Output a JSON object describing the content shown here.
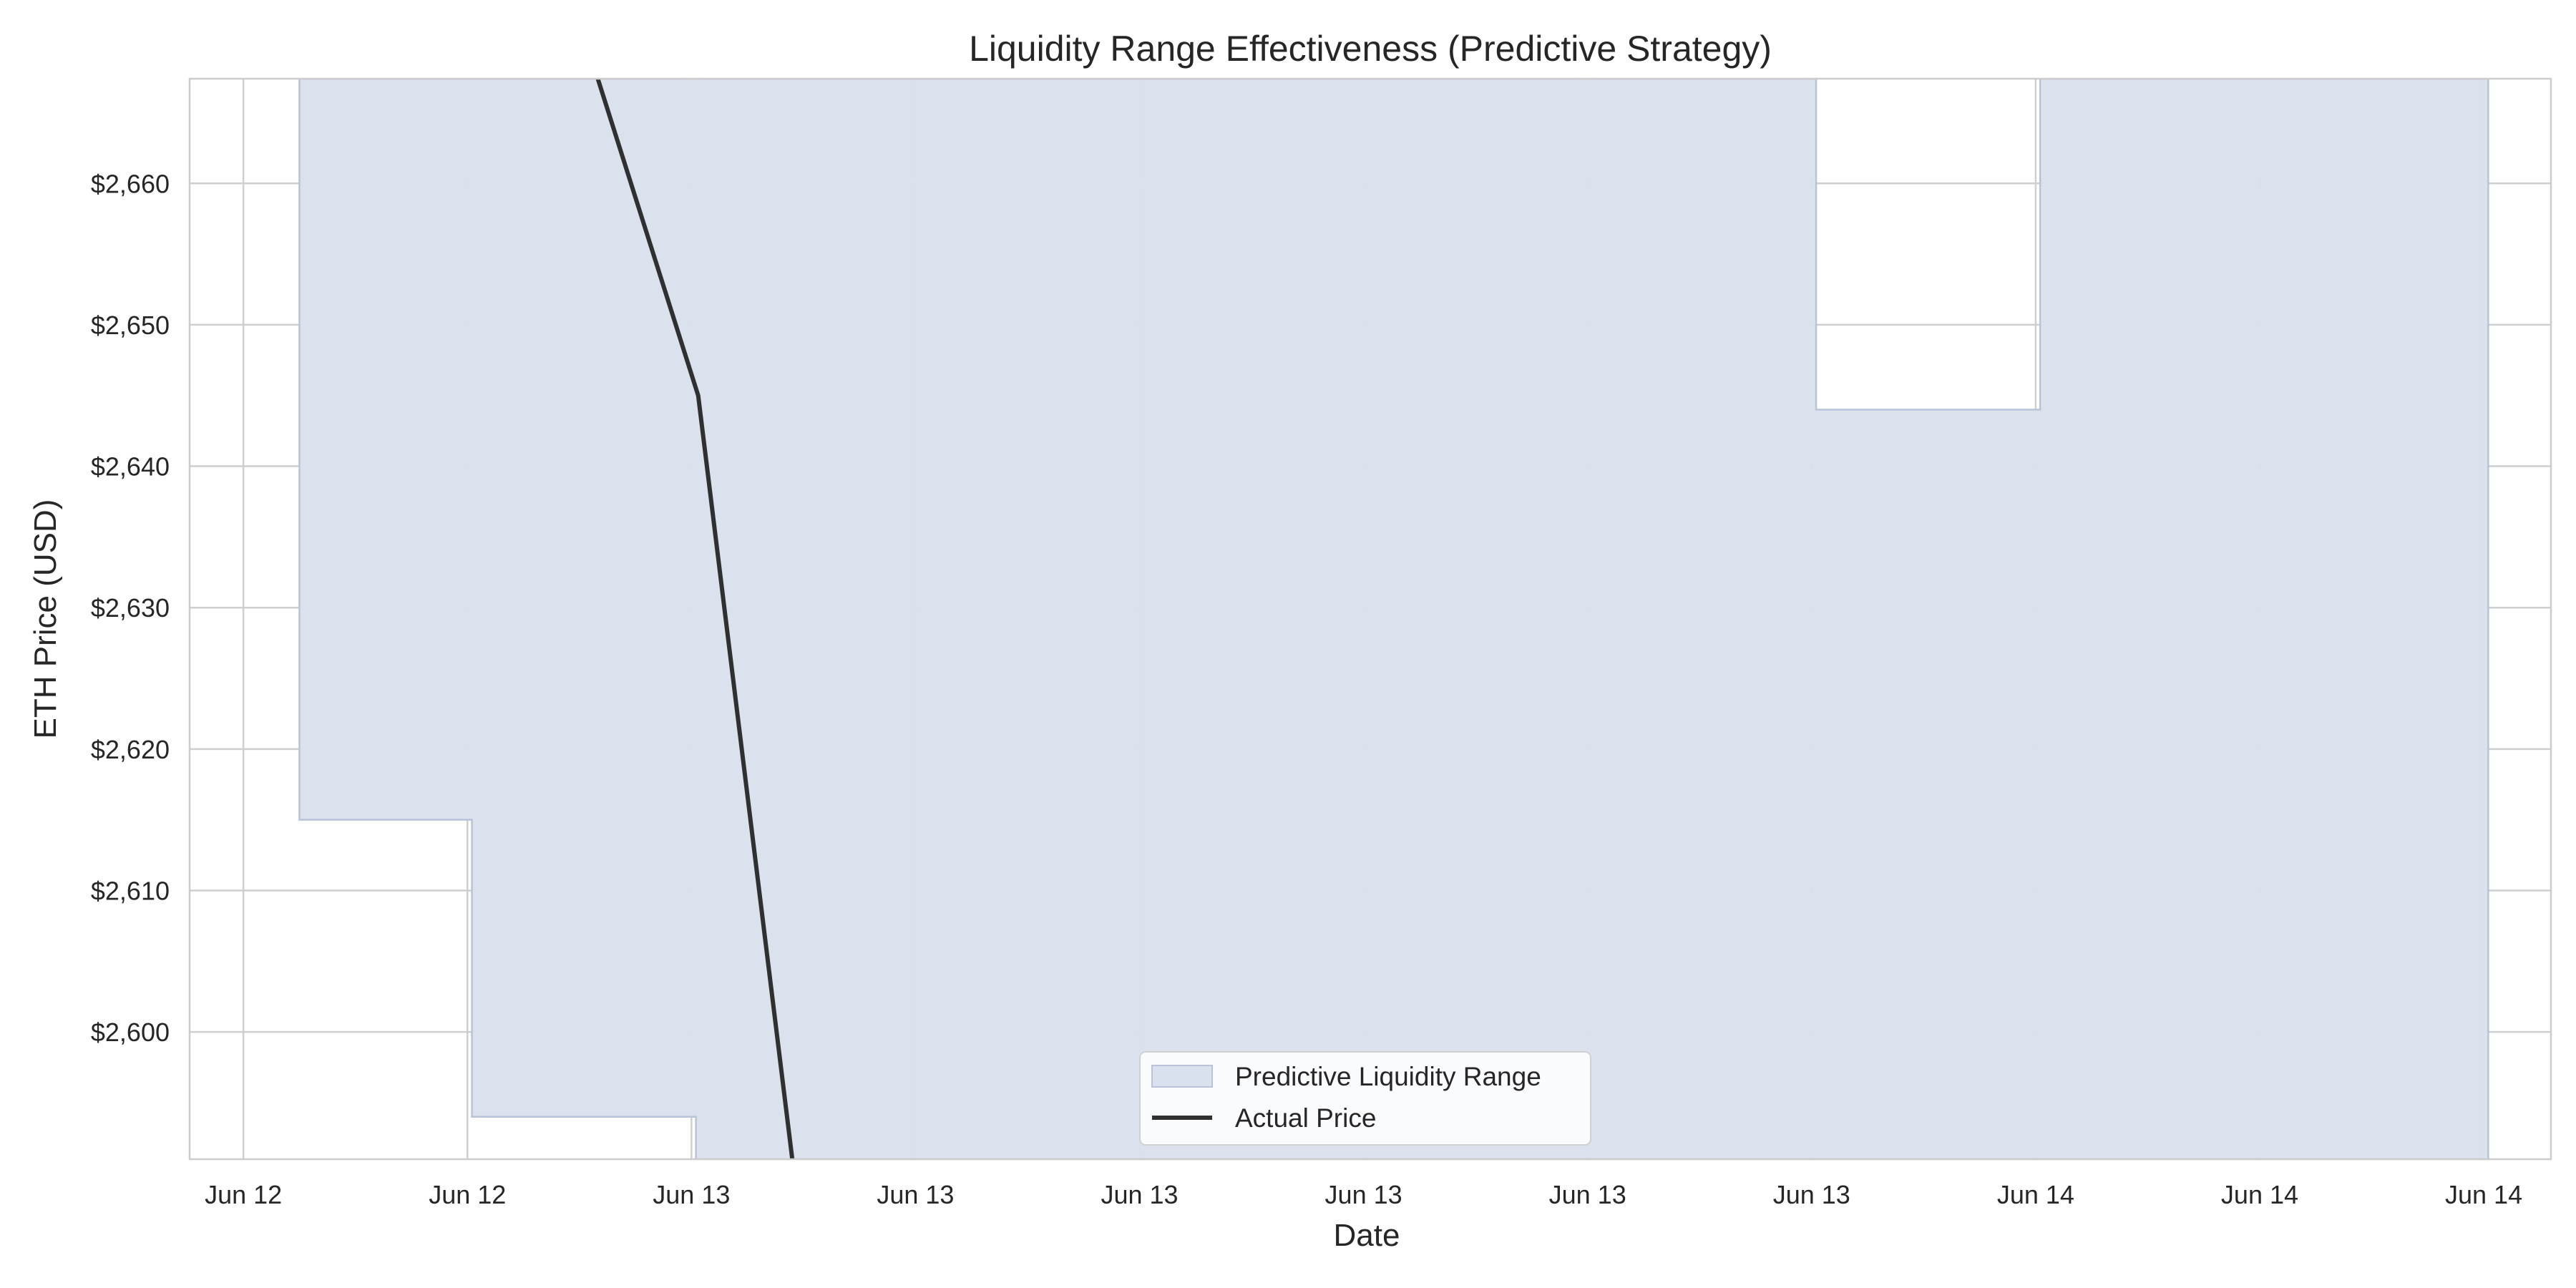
{
  "chart_data": {
    "type": "area",
    "title": "Liquidity Range Effectiveness (Predictive Strategy)",
    "xlabel": "Date",
    "ylabel": "ETH Price (USD)",
    "x_ticks": [
      "Jun 12",
      "Jun 12",
      "Jun 13",
      "Jun 13",
      "Jun 13",
      "Jun 13",
      "Jun 13",
      "Jun 13",
      "Jun 14",
      "Jun 14",
      "Jun 14"
    ],
    "y_ticks": [
      "$2,600",
      "$2,610",
      "$2,620",
      "$2,630",
      "$2,640",
      "$2,650",
      "$2,660"
    ],
    "y_tick_values": [
      2600,
      2610,
      2620,
      2630,
      2640,
      2650,
      2660
    ],
    "xlim": [
      -0.24,
      10.3
    ],
    "ylim": [
      2591,
      2667.4
    ],
    "grid": true,
    "legend_position": "bottom-center",
    "colors": {
      "range_fill": "#dae1ee",
      "range_edge": "#b8c3d9",
      "price_line": "#303030",
      "grid": "#cfcfcf",
      "axes": "#cccccc"
    },
    "series": [
      {
        "name": "Predictive Liquidity Range",
        "kind": "step-band",
        "segments": [
          {
            "x": [
              0.25,
              1.02
            ],
            "lower": 2615,
            "upper": 2667.4
          },
          {
            "x": [
              1.02,
              2.02
            ],
            "lower": 2594,
            "upper": 2667.4
          },
          {
            "x": [
              2.02,
              7.02
            ],
            "lower": 2591,
            "upper": 2667.4
          },
          {
            "x": [
              7.02,
              8.02
            ],
            "lower": 2591,
            "upper": 2644
          },
          {
            "x": [
              8.02,
              10.02
            ],
            "lower": 2591,
            "upper": 2667.4
          }
        ]
      },
      {
        "name": "Actual Price",
        "kind": "line",
        "x": [
          1.43,
          2.03,
          2.45
        ],
        "y": [
          2675,
          2645,
          2591
        ]
      }
    ]
  }
}
